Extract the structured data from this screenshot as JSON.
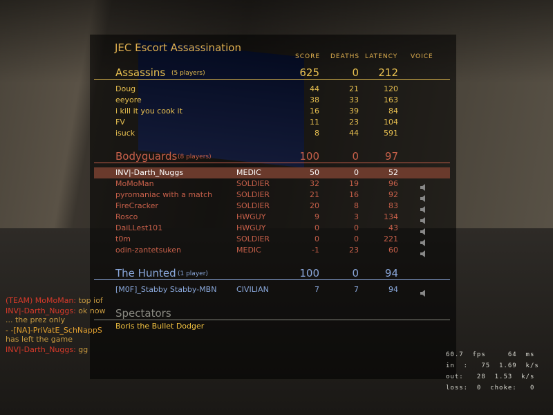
{
  "title": "JEC Escort Assassination",
  "columns": {
    "score": "SCORE",
    "deaths": "DEATHS",
    "latency": "LATENCY",
    "voice": "VOICE"
  },
  "colors": {
    "assassins": "#e8c050",
    "bodyguards": "#c8604a",
    "hunted": "#8aa8dc",
    "spectators": "#8a8a82",
    "highlight_row": "#6a3a2c"
  },
  "teams": [
    {
      "name": "Assassins",
      "count": "(5 players)",
      "score": "625",
      "deaths": "0",
      "latency": "212",
      "players": [
        {
          "name": "Doug",
          "class": "",
          "score": "44",
          "deaths": "21",
          "latency": "120",
          "voice": false
        },
        {
          "name": "eeyore",
          "class": "",
          "score": "38",
          "deaths": "33",
          "latency": "163",
          "voice": false
        },
        {
          "name": "i kill it you cook it",
          "class": "",
          "score": "16",
          "deaths": "39",
          "latency": "84",
          "voice": false
        },
        {
          "name": "FV",
          "class": "",
          "score": "11",
          "deaths": "23",
          "latency": "104",
          "voice": false
        },
        {
          "name": "isuck",
          "class": "",
          "score": "8",
          "deaths": "44",
          "latency": "591",
          "voice": false
        }
      ]
    },
    {
      "name": "Bodyguards",
      "count": "(8 players)",
      "score": "100",
      "deaths": "0",
      "latency": "97",
      "players": [
        {
          "name": "INV|-Darth_Nuggs",
          "class": "MEDIC",
          "score": "50",
          "deaths": "0",
          "latency": "52",
          "voice": false,
          "local": true
        },
        {
          "name": "MoMoMan",
          "class": "SOLDIER",
          "score": "32",
          "deaths": "19",
          "latency": "96",
          "voice": true
        },
        {
          "name": "pyromaniac with a match",
          "class": "SOLDIER",
          "score": "21",
          "deaths": "16",
          "latency": "92",
          "voice": true
        },
        {
          "name": "FireCracker",
          "class": "SOLDIER",
          "score": "20",
          "deaths": "8",
          "latency": "83",
          "voice": true
        },
        {
          "name": "Rosco",
          "class": "HWGUY",
          "score": "9",
          "deaths": "3",
          "latency": "134",
          "voice": true
        },
        {
          "name": "DaiLLest101",
          "class": "HWGUY",
          "score": "0",
          "deaths": "0",
          "latency": "43",
          "voice": true
        },
        {
          "name": "t0m",
          "class": "SOLDIER",
          "score": "0",
          "deaths": "0",
          "latency": "221",
          "voice": true
        },
        {
          "name": "odin-zantetsuken",
          "class": "MEDIC",
          "score": "-1",
          "deaths": "23",
          "latency": "60",
          "voice": true
        }
      ]
    },
    {
      "name": "The Hunted",
      "count": "(1 player)",
      "score": "100",
      "deaths": "0",
      "latency": "94",
      "players": [
        {
          "name": "[M0F]_Stabby Stabby-MBN",
          "class": "CIVILIAN",
          "score": "7",
          "deaths": "7",
          "latency": "94",
          "voice": true
        }
      ]
    }
  ],
  "spectators": {
    "label": "Spectators",
    "players": [
      "Boris the Bullet Dodger"
    ]
  },
  "chat": [
    {
      "prefix": "(TEAM) MoMoMan:",
      "text": " top iof",
      "color": "#d83a2a"
    },
    {
      "prefix": "INV|-Darth_Nuggs:",
      "text": " ok now ... the prez only",
      "color": "#d83a2a"
    },
    {
      "prefix": "- -[NA]-PriVatE_SchNappS",
      "text": " has left the game",
      "color": "#e0a030"
    },
    {
      "prefix": "INV|-Darth_Nuggs:",
      "text": " gg",
      "color": "#d83a2a"
    }
  ],
  "netgraph": [
    "60.7  fps     64  ms",
    "in  :   75  1.69  k/s",
    "out:   28  1.53  k/s",
    "loss:  0  choke:   0"
  ]
}
